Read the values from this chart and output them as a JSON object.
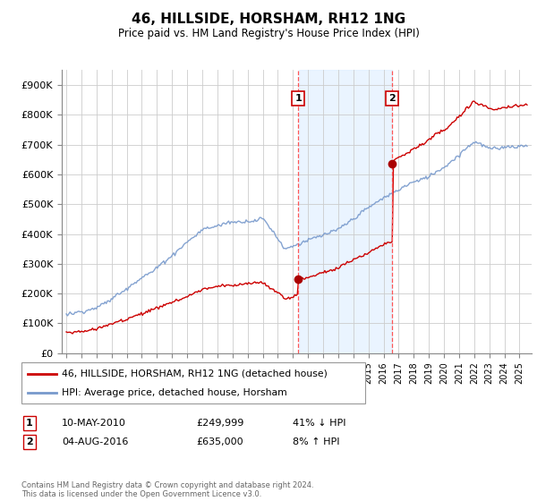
{
  "title": "46, HILLSIDE, HORSHAM, RH12 1NG",
  "subtitle": "Price paid vs. HM Land Registry's House Price Index (HPI)",
  "legend_line1": "46, HILLSIDE, HORSHAM, RH12 1NG (detached house)",
  "legend_line2": "HPI: Average price, detached house, Horsham",
  "transaction1_label": "1",
  "transaction1_date": "10-MAY-2010",
  "transaction1_price": "£249,999",
  "transaction1_hpi": "41% ↓ HPI",
  "transaction2_label": "2",
  "transaction2_date": "04-AUG-2016",
  "transaction2_price": "£635,000",
  "transaction2_hpi": "8% ↑ HPI",
  "footnote": "Contains HM Land Registry data © Crown copyright and database right 2024.\nThis data is licensed under the Open Government Licence v3.0.",
  "ylim": [
    0,
    950000
  ],
  "yticks": [
    0,
    100000,
    200000,
    300000,
    400000,
    500000,
    600000,
    700000,
    800000,
    900000
  ],
  "ytick_labels": [
    "£0",
    "£100K",
    "£200K",
    "£300K",
    "£400K",
    "£500K",
    "£600K",
    "£700K",
    "£800K",
    "£900K"
  ],
  "hpi_color": "#7799cc",
  "price_color": "#cc0000",
  "marker_color": "#aa0000",
  "background_color": "#ffffff",
  "plot_bg_color": "#ffffff",
  "grid_color": "#cccccc",
  "shade_color": "#ddeeff",
  "vline1_color": "#ff5555",
  "vline2_color": "#ff5555",
  "transaction1_year": 2010.36,
  "transaction2_year": 2016.58,
  "transaction1_price_val": 249999,
  "transaction2_price_val": 635000
}
